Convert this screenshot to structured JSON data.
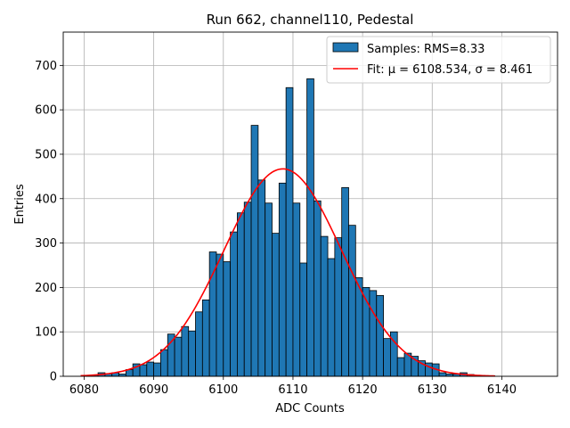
{
  "chart_data": {
    "type": "bar",
    "title": "Run 662, channel110, Pedestal",
    "xlabel": "ADC Counts",
    "ylabel": "Entries",
    "xlim": [
      6077,
      6148
    ],
    "ylim": [
      0,
      775
    ],
    "xticks": [
      6080,
      6090,
      6100,
      6110,
      6120,
      6130,
      6140
    ],
    "yticks": [
      0,
      100,
      200,
      300,
      400,
      500,
      600,
      700
    ],
    "grid": true,
    "legend_position": "top-right",
    "bar_color": "#1f77b4",
    "bar_edge_color": "#000000",
    "fit_color": "#ff0000",
    "bin_width": 1,
    "bins": {
      "x_start": [
        6080,
        6081,
        6082,
        6083,
        6084,
        6085,
        6086,
        6087,
        6088,
        6089,
        6090,
        6091,
        6092,
        6093,
        6094,
        6095,
        6096,
        6097,
        6098,
        6099,
        6100,
        6101,
        6102,
        6103,
        6104,
        6105,
        6106,
        6107,
        6108,
        6109,
        6110,
        6111,
        6112,
        6113,
        6114,
        6115,
        6116,
        6117,
        6118,
        6119,
        6120,
        6121,
        6122,
        6123,
        6124,
        6125,
        6126,
        6127,
        6128,
        6129,
        6130,
        6131,
        6132,
        6133,
        6134,
        6135,
        6136,
        6137,
        6138,
        6139
      ],
      "counts": [
        2,
        3,
        8,
        6,
        8,
        5,
        15,
        28,
        26,
        32,
        30,
        60,
        95,
        88,
        112,
        102,
        145,
        172,
        280,
        275,
        258,
        325,
        368,
        392,
        565,
        442,
        390,
        322,
        435,
        650,
        390,
        255,
        670,
        395,
        315,
        265,
        312,
        425,
        340,
        222,
        200,
        193,
        182,
        85,
        100,
        42,
        52,
        45,
        35,
        30,
        28,
        8,
        5,
        5,
        8,
        4,
        2,
        1,
        1,
        0
      ]
    },
    "fit": {
      "mu": 6108.534,
      "sigma": 8.461,
      "amplitude": 467,
      "x_range": [
        6079.5,
        6139
      ]
    },
    "legend": [
      {
        "label": "Samples: RMS=8.33",
        "kind": "patch"
      },
      {
        "label": "Fit: μ = 6108.534, σ = 8.461",
        "kind": "line"
      }
    ]
  }
}
